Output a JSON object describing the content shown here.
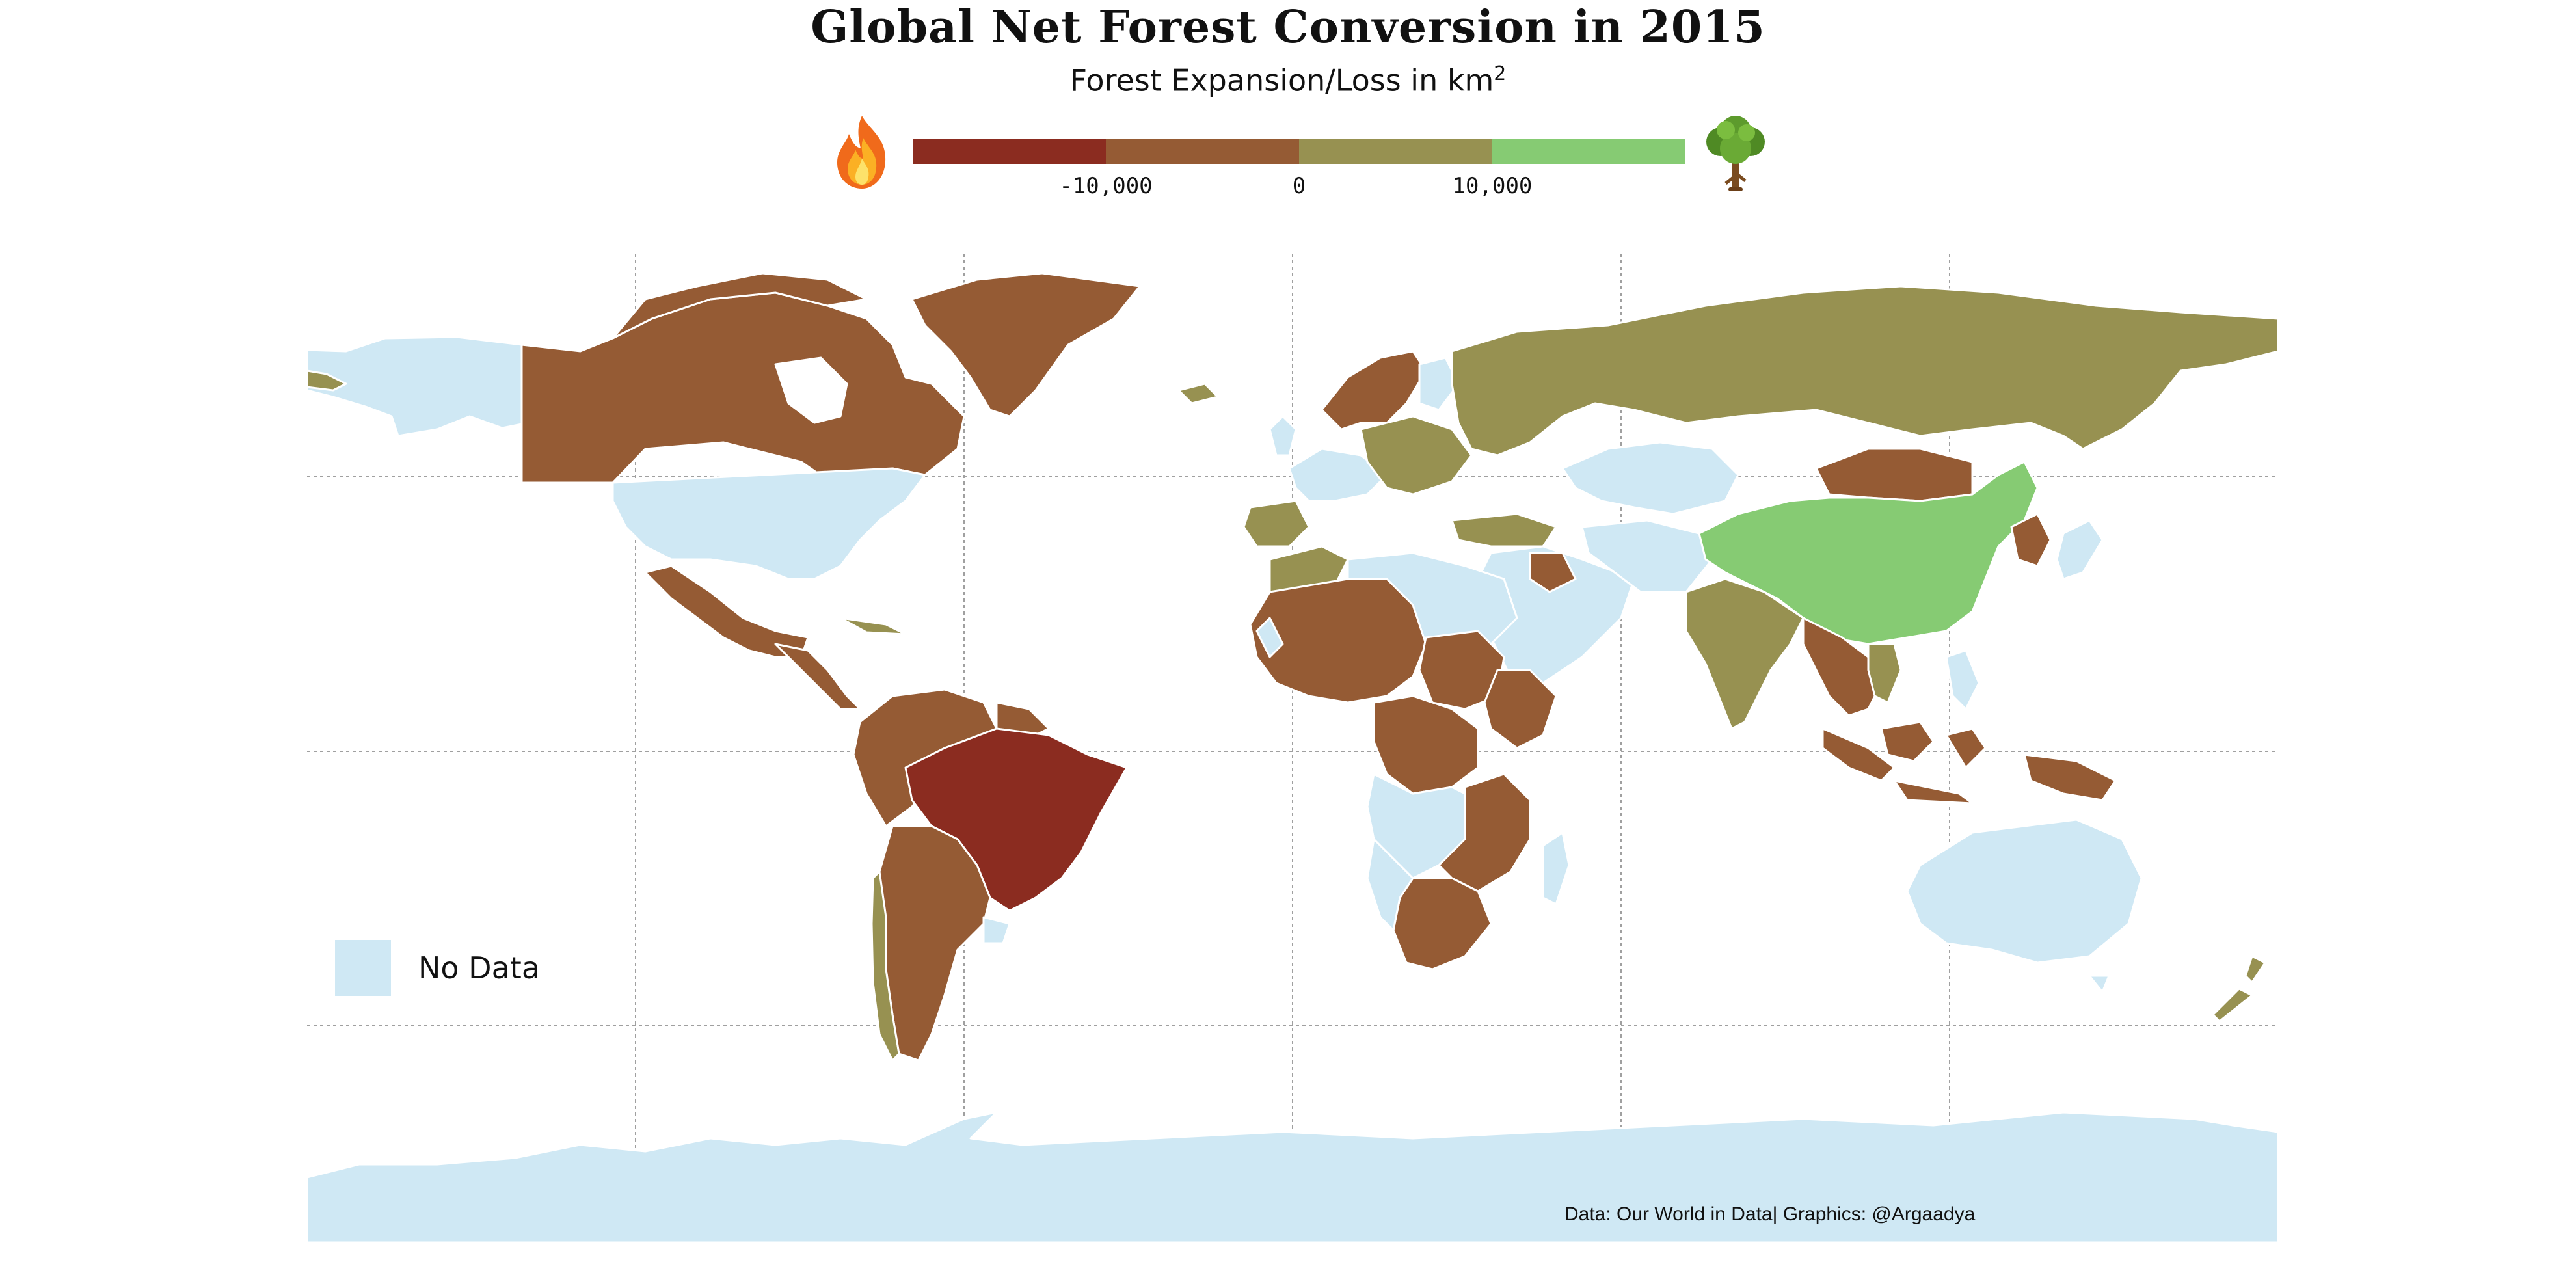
{
  "title": "Global Net Forest Conversion in 2015",
  "subtitle": "Forest Expansion/Loss in  km",
  "subtitle_sup": "2",
  "legend": {
    "colors": [
      "#8b2c20",
      "#955b34",
      "#979151",
      "#86cb73"
    ],
    "ticks": [
      "-10,000",
      "0",
      "10,000"
    ],
    "left_icon": "fire-icon",
    "right_icon": "tree-icon"
  },
  "no_data": {
    "label": "No Data",
    "color": "#cfe8f4"
  },
  "credit": "Data: Our World in Data| Graphics: @Argaadya",
  "colors": {
    "ocean": "#ffffff",
    "grid": "#a0a0a0",
    "border": "#ffffff"
  }
}
